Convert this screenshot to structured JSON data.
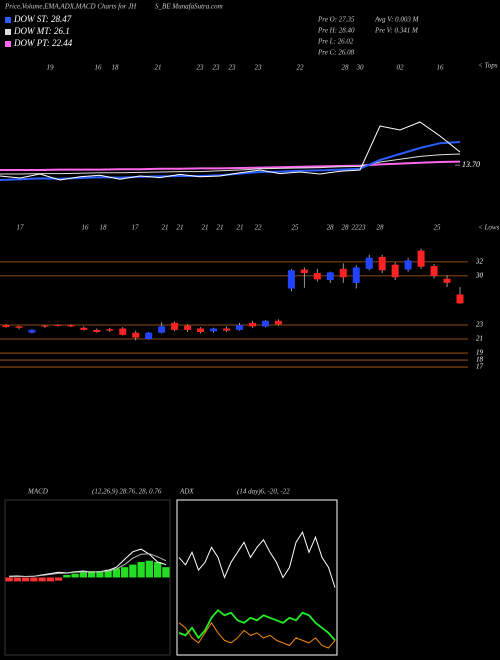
{
  "header": {
    "title": "Price,Volume,EMA,ADX,MACD Charts for JH",
    "subtitle": "S_BE MunafaSutra.com"
  },
  "stats": [
    "Pre O: 27.35",
    "Pre H: 28.40",
    "Pre L: 26.02",
    "Pre C: 26.08"
  ],
  "stats2": [
    "Avg V: 0.003 M",
    "Pre V: 0.341 M"
  ],
  "chart_data": [
    {
      "type": "line",
      "top_labels": [
        "19",
        "16",
        "18",
        "21",
        "23",
        "23",
        "23",
        "23",
        "22",
        "28",
        "30",
        "02",
        "16"
      ],
      "tops_label": "< Tops",
      "bottom_labels": [
        "17",
        "16",
        "18",
        "17",
        "21",
        "21",
        "21",
        "21",
        "21",
        "22",
        "25",
        "28",
        "28",
        "22",
        "23",
        "28",
        "25"
      ],
      "lows_label": "< Lows",
      "categories": [
        null,
        null,
        null,
        null,
        null,
        null,
        null,
        null,
        null,
        null,
        null,
        null,
        null,
        null,
        null,
        null,
        null,
        null,
        null,
        null,
        null,
        null,
        null,
        null
      ],
      "ylim": [
        0,
        40
      ],
      "yticks": [
        {
          "value": 13.7,
          "label": "13.70"
        }
      ],
      "series": [
        {
          "color": "#ffffff",
          "values": [
            11,
            10.5,
            11.5,
            10,
            10.8,
            11.2,
            10.2,
            11,
            10.6,
            11.4,
            10.8,
            11,
            11.8,
            12.5,
            11.6,
            12,
            11.5,
            12.2,
            12.5,
            23.5,
            22.5,
            24.5,
            21,
            17
          ]
        },
        {
          "name": "DOW ST: 28.47",
          "color": "#2a5cff",
          "values": [
            10,
            10.2,
            10.4,
            10.3,
            10.5,
            10.7,
            10.6,
            10.8,
            10.9,
            11,
            11,
            11.2,
            11.6,
            12,
            12.1,
            12.3,
            12.4,
            12.6,
            12.8,
            15,
            16.5,
            18,
            19.2,
            19.5
          ]
        },
        {
          "name": "DOW MT: 26.1",
          "color": "#dddddd",
          "values": [
            11.5,
            11.5,
            11.6,
            11.6,
            11.7,
            11.8,
            11.8,
            11.9,
            12,
            12.1,
            12.1,
            12.3,
            12.5,
            12.8,
            12.9,
            13,
            13.1,
            13.3,
            13.4,
            14.5,
            15.2,
            15.9,
            16.3,
            16.5
          ]
        },
        {
          "name": "DOW PT: 22.44",
          "color": "#ff66ee",
          "values": [
            12.5,
            12.5,
            12.5,
            12.6,
            12.6,
            12.6,
            12.7,
            12.7,
            12.8,
            12.8,
            12.9,
            12.9,
            13,
            13.1,
            13.2,
            13.3,
            13.4,
            13.5,
            13.6,
            13.9,
            14.1,
            14.3,
            14.5,
            14.6
          ]
        }
      ]
    },
    {
      "type": "candlestick",
      "ylim": [
        15.3,
        34.4
      ],
      "yticks": [
        32,
        30,
        23,
        21,
        19,
        18,
        17
      ],
      "grid": true,
      "grid_color": "#b8601e",
      "up_color": "#2244ff",
      "down_color": "#ff2222",
      "open": [
        23.0,
        22.8,
        21.9,
        22.9,
        23.0,
        23.0,
        22.6,
        22.3,
        22.4,
        22.5,
        21.9,
        21.0,
        21.9,
        23.3,
        22.9,
        22.5,
        22.1,
        22.5,
        22.3,
        23.3,
        22.8,
        23.6,
        28.2,
        30.9,
        30.4,
        29.4,
        31.0,
        29.0,
        31.0,
        32.7,
        31.6,
        30.9,
        33.6,
        31.4,
        29.6,
        27.35
      ],
      "high": [
        23.1,
        22.9,
        22.4,
        23.0,
        23.1,
        23.1,
        22.8,
        22.5,
        22.6,
        22.7,
        22.2,
        22.0,
        23.4,
        23.5,
        23.1,
        22.7,
        22.6,
        22.8,
        23.3,
        23.6,
        23.7,
        23.8,
        31.0,
        31.2,
        31.0,
        30.6,
        31.8,
        31.5,
        33.0,
        33.0,
        31.9,
        32.6,
        33.9,
        31.7,
        30.1,
        28.4
      ],
      "low": [
        22.6,
        22.4,
        21.8,
        22.6,
        22.8,
        22.7,
        22.2,
        21.9,
        22.0,
        21.5,
        20.8,
        20.9,
        21.8,
        22.1,
        22.0,
        21.8,
        21.9,
        22.0,
        22.2,
        22.6,
        22.7,
        22.9,
        27.8,
        28.3,
        29.2,
        29.0,
        29.0,
        28.2,
        30.8,
        30.4,
        29.4,
        30.6,
        31.0,
        29.6,
        28.4,
        26.02
      ],
      "close": [
        22.7,
        22.6,
        22.3,
        22.8,
        22.9,
        22.8,
        22.3,
        22.0,
        22.2,
        21.6,
        21.2,
        21.9,
        22.8,
        22.3,
        22.3,
        22.0,
        22.5,
        22.2,
        23.0,
        22.8,
        23.6,
        23.1,
        30.8,
        30.4,
        29.5,
        30.5,
        29.8,
        31.2,
        32.6,
        30.8,
        29.8,
        32.2,
        31.3,
        30.0,
        29.0,
        26.08
      ]
    },
    {
      "type": "macd",
      "title": "MACD",
      "subtitle": "(12,26,9) 28.76, 28, 0.76",
      "ylim": [
        -30,
        30
      ],
      "up_color": "#22dd22",
      "down_color": "#ff3333",
      "series": [
        {
          "color": "#ffffff",
          "values": [
            0.5,
            0.6,
            0.4,
            0.5,
            1,
            1.5,
            2,
            1.8,
            2.2,
            2.5,
            2,
            2.3,
            2.8,
            4,
            7,
            10,
            11,
            9,
            6,
            5
          ]
        },
        {
          "color": "#bbbbbb",
          "values": [
            0.3,
            0.4,
            0.4,
            0.5,
            0.8,
            1.2,
            1.6,
            1.7,
            2,
            2.2,
            2.1,
            2.2,
            2.5,
            3.3,
            5,
            7.5,
            9,
            9.2,
            8,
            6.5
          ]
        }
      ],
      "histogram": [
        -1.5,
        -1.5,
        -1.5,
        -1.5,
        -1.5,
        -1.5,
        -1.2,
        1,
        1.5,
        2,
        2.5,
        2.5,
        3,
        3.5,
        4,
        5,
        6,
        6.5,
        6,
        4
      ]
    },
    {
      "type": "line",
      "title": "ADX",
      "subtitle": "(14 day)6, -20, -22",
      "ylim": [
        0,
        60
      ],
      "series": [
        {
          "color": "#ffffff",
          "values": [
            38,
            35,
            40,
            33,
            36,
            42,
            38,
            30,
            36,
            40,
            44,
            38,
            42,
            45,
            40,
            36,
            30,
            34,
            44,
            48,
            40,
            46,
            38,
            34,
            26
          ]
        },
        {
          "color": "#22ee22",
          "values": [
            8,
            7,
            10,
            6,
            9,
            14,
            17,
            15,
            16,
            13,
            12,
            14,
            13,
            15,
            14,
            13,
            12,
            14,
            13,
            16,
            15,
            12,
            10,
            8,
            5
          ]
        },
        {
          "color": "#ee8811",
          "values": [
            12,
            10,
            6,
            4,
            8,
            12,
            8,
            5,
            4,
            6,
            9,
            7,
            8,
            6,
            7,
            5,
            4,
            3,
            6,
            5,
            4,
            6,
            3,
            2,
            5
          ]
        }
      ]
    }
  ]
}
